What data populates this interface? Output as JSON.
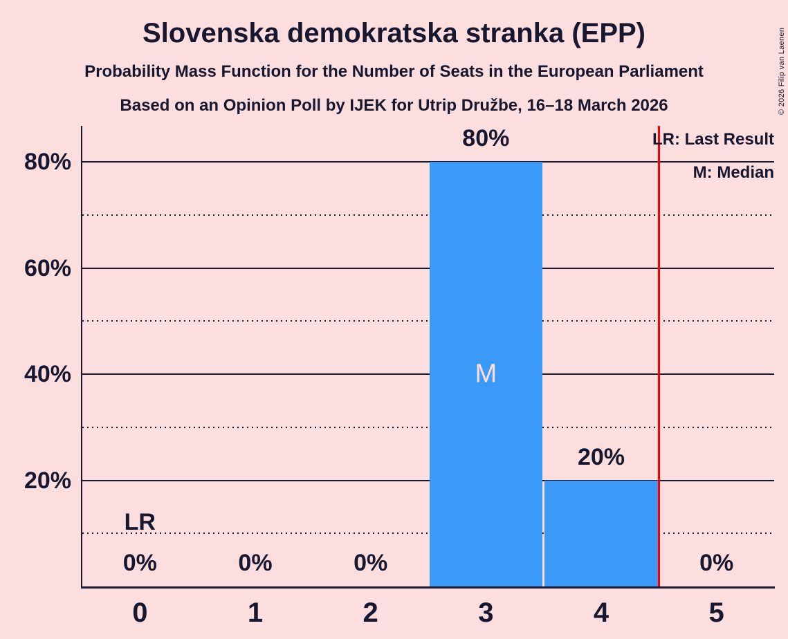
{
  "title": "Slovenska demokratska stranka (EPP)",
  "subtitle_pmf": "Probability Mass Function for the Number of Seats in the European Parliament",
  "subtitle_poll": "Based on an Opinion Poll by IJEK for Utrip Družbe, 16–18 March 2026",
  "copyright": "© 2026 Filip van Laenen",
  "legend": {
    "last_result": "LR: Last Result",
    "median": "M: Median"
  },
  "colors": {
    "background": "#fcdede",
    "text": "#17172f",
    "bar": "#3b99f7",
    "last_result_line": "#f80000",
    "median_marker_text": "#fcdede"
  },
  "chart_data": {
    "type": "bar",
    "title": "Slovenska demokratska stranka (EPP)",
    "categories": [
      "0",
      "1",
      "2",
      "3",
      "4",
      "5"
    ],
    "values": [
      0,
      0,
      0,
      80,
      20,
      0
    ],
    "bar_labels": [
      "0%",
      "0%",
      "0%",
      "80%",
      "20%",
      "0%"
    ],
    "xlabel": "",
    "ylabel": "",
    "ylim": [
      0,
      86.8
    ],
    "y_axis_ticks": [
      {
        "value": 20,
        "label": "20%"
      },
      {
        "value": 40,
        "label": "40%"
      },
      {
        "value": 60,
        "label": "60%"
      },
      {
        "value": 80,
        "label": "80%"
      }
    ],
    "minor_grid_values": [
      10,
      30,
      50,
      70
    ],
    "grid": "solid major lines, dotted minor lines",
    "median": {
      "seat_index": 3,
      "marker": "M"
    },
    "last_result": {
      "marker": "LR",
      "label_seat_index": 0,
      "label_at_grid_value": 10,
      "line_seat_position": 4.5
    },
    "legend_entries": [
      "LR: Last Result",
      "M: Median"
    ],
    "legend_position": "top-right"
  }
}
